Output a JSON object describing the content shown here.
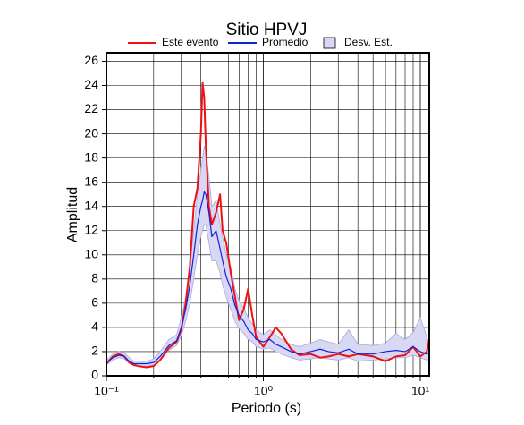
{
  "chart_data": {
    "type": "line",
    "title": "Sitio HPVJ",
    "x_label": "Periodo (s)",
    "y_label": "Amplitud",
    "xscale": "log",
    "grid": true,
    "xlim": [
      0.1,
      11.4
    ],
    "ylim": [
      0,
      26.7
    ],
    "xticks": [
      {
        "value": 0.1,
        "label": "10⁻¹"
      },
      {
        "value": 1,
        "label": "10⁰"
      },
      {
        "value": 10,
        "label": "10¹"
      }
    ],
    "xminorticks": [
      0.2,
      0.3,
      0.4,
      0.5,
      0.6,
      0.7,
      0.8,
      0.9,
      2,
      3,
      4,
      5,
      6,
      7,
      8,
      9
    ],
    "yticks": [
      0,
      2,
      4,
      6,
      8,
      10,
      12,
      14,
      16,
      18,
      20,
      22,
      24,
      26
    ],
    "x": [
      0.1,
      0.11,
      0.12,
      0.13,
      0.14,
      0.15,
      0.16,
      0.18,
      0.2,
      0.22,
      0.25,
      0.28,
      0.3,
      0.32,
      0.34,
      0.36,
      0.38,
      0.4,
      0.41,
      0.42,
      0.43,
      0.45,
      0.47,
      0.5,
      0.53,
      0.55,
      0.58,
      0.62,
      0.66,
      0.7,
      0.75,
      0.8,
      0.85,
      0.9,
      1.0,
      1.1,
      1.2,
      1.3,
      1.5,
      1.7,
      2.0,
      2.3,
      2.6,
      3.0,
      3.5,
      4,
      5,
      6,
      7,
      8,
      9,
      10,
      11,
      11.4
    ],
    "band": {
      "name": "Desv. Est.",
      "color": "#d8d8f4",
      "edge": "#a8a8e0",
      "lower": [
        0.9,
        1.3,
        1.5,
        1.4,
        1.0,
        0.8,
        0.8,
        0.8,
        0.9,
        1.3,
        2.1,
        2.5,
        3.3,
        4.5,
        6,
        8,
        10,
        11.5,
        12,
        12.5,
        12.5,
        11,
        9.5,
        9.5,
        8.5,
        7.5,
        6.5,
        5.5,
        4.5,
        3.9,
        3.5,
        3.0,
        2.8,
        2.4,
        2.2,
        2.3,
        2.0,
        1.8,
        1.5,
        1.3,
        1.4,
        1.5,
        1.4,
        1.3,
        1.5,
        1.2,
        1.3,
        1.4,
        1.5,
        1.5,
        1.7,
        1.5,
        1.3,
        1.4
      ],
      "upper": [
        1.3,
        1.8,
        2.0,
        1.9,
        1.5,
        1.2,
        1.2,
        1.2,
        1.4,
        2.0,
        3.0,
        3.4,
        4.8,
        6.5,
        9,
        12,
        15,
        17,
        18,
        19,
        18.5,
        16.5,
        14,
        14.5,
        12.5,
        11.5,
        10,
        9,
        7.2,
        6.2,
        5.6,
        4.8,
        4.3,
        3.8,
        3.4,
        3.8,
        3.4,
        3.0,
        2.6,
        2.4,
        2.7,
        3.0,
        2.8,
        2.6,
        3.8,
        2.6,
        2.5,
        2.7,
        3.5,
        3.0,
        3.6,
        4.8,
        3.2,
        2.6
      ]
    },
    "series": [
      {
        "name": "Este evento",
        "color": "#ee1111",
        "width": 2,
        "values": [
          1.0,
          1.6,
          1.8,
          1.6,
          1.1,
          0.9,
          0.8,
          0.7,
          0.8,
          1.3,
          2.3,
          2.8,
          3.8,
          6,
          9,
          14,
          15.5,
          20,
          24.2,
          23,
          19,
          14,
          12.5,
          13.5,
          15,
          12,
          11,
          8.5,
          6.5,
          4.6,
          5.5,
          7.2,
          5,
          3.2,
          2.4,
          3.2,
          4.0,
          3.5,
          2.2,
          1.7,
          1.8,
          1.5,
          1.6,
          1.8,
          1.6,
          1.8,
          1.6,
          1.2,
          1.6,
          1.7,
          2.4,
          1.6,
          2.0,
          3.0
        ]
      },
      {
        "name": "Promedio",
        "color": "#1122dd",
        "width": 1.2,
        "values": [
          1.1,
          1.5,
          1.7,
          1.6,
          1.2,
          1.0,
          1.0,
          1.0,
          1.1,
          1.6,
          2.5,
          2.9,
          4,
          5.5,
          7.5,
          10,
          12.5,
          14,
          14.5,
          15.2,
          15,
          13.5,
          11.5,
          12,
          10.5,
          9.5,
          8.2,
          7.2,
          5.8,
          5,
          4.5,
          3.8,
          3.5,
          3.0,
          2.8,
          3.0,
          2.6,
          2.4,
          2.0,
          1.8,
          2.0,
          2.2,
          2.0,
          1.9,
          2.2,
          1.8,
          1.8,
          2.0,
          2.1,
          2.0,
          2.4,
          2.0,
          1.8,
          1.9
        ]
      }
    ]
  }
}
